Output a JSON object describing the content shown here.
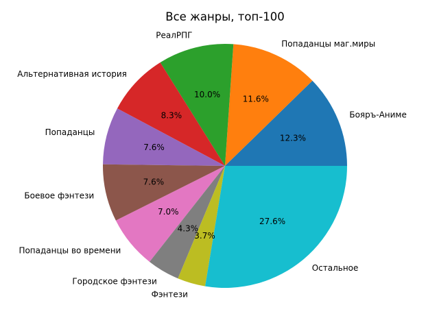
{
  "chart_data": {
    "type": "pie",
    "title": "Все жанры, топ-100",
    "slices": [
      {
        "label": "Бояръ-Аниме",
        "value": 12.3,
        "pct_text": "12.3%",
        "color": "#1f77b4"
      },
      {
        "label": "Попаданцы маг.миры",
        "value": 11.6,
        "pct_text": "11.6%",
        "color": "#ff7f0e"
      },
      {
        "label": "РеалРПГ",
        "value": 10.0,
        "pct_text": "10.0%",
        "color": "#2ca02c"
      },
      {
        "label": "Альтернативная история",
        "value": 8.3,
        "pct_text": "8.3%",
        "color": "#d62728"
      },
      {
        "label": "Попаданцы",
        "value": 7.6,
        "pct_text": "7.6%",
        "color": "#9467bd"
      },
      {
        "label": "Боевое фэнтези",
        "value": 7.6,
        "pct_text": "7.6%",
        "color": "#8c564b"
      },
      {
        "label": "Попаданцы во времени",
        "value": 7.0,
        "pct_text": "7.0%",
        "color": "#e377c2"
      },
      {
        "label": "Городское фэнтези",
        "value": 4.3,
        "pct_text": "4.3%",
        "color": "#7f7f7f"
      },
      {
        "label": "Фэнтези",
        "value": 3.7,
        "pct_text": "3.7%",
        "color": "#bcbd22"
      },
      {
        "label": "Остальное",
        "value": 27.6,
        "pct_text": "27.6%",
        "color": "#17becf"
      }
    ],
    "start_angle": 0,
    "direction": "counterclockwise",
    "legend": "none"
  }
}
